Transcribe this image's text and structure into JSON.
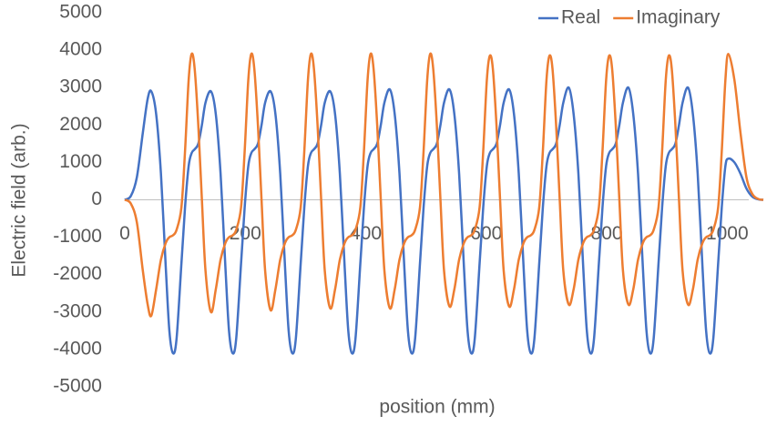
{
  "chart_data": {
    "type": "line",
    "x_label": "position (mm)",
    "y_label": "Electric field (arb.)",
    "xlim": [
      0,
      1060
    ],
    "xticks": [
      0,
      200,
      400,
      600,
      800,
      1000
    ],
    "ylim": [
      -5000,
      5000
    ],
    "yticks": [
      -5000,
      -4000,
      -3000,
      -2000,
      -1000,
      0,
      1000,
      2000,
      3000,
      4000,
      5000
    ],
    "legend": "top-right",
    "x": [
      0,
      10,
      20,
      30,
      38,
      44,
      52,
      60,
      68,
      74,
      80,
      86,
      94,
      100,
      106,
      111,
      116,
      122,
      128,
      134,
      143,
      151,
      159,
      167,
      173,
      179,
      185,
      193,
      199,
      205,
      210,
      215,
      221,
      227,
      233,
      242,
      250,
      258,
      266,
      272,
      278,
      284,
      292,
      298,
      304,
      309,
      314,
      320,
      326,
      332,
      341,
      349,
      357,
      365,
      371,
      377,
      383,
      391,
      397,
      403,
      408,
      413,
      419,
      425,
      431,
      440,
      448,
      456,
      464,
      470,
      476,
      482,
      490,
      496,
      502,
      507,
      512,
      518,
      524,
      530,
      539,
      547,
      555,
      563,
      569,
      575,
      581,
      589,
      595,
      601,
      606,
      611,
      617,
      623,
      629,
      638,
      646,
      654,
      662,
      668,
      674,
      680,
      688,
      694,
      700,
      705,
      710,
      716,
      722,
      728,
      737,
      745,
      753,
      761,
      767,
      773,
      779,
      787,
      793,
      799,
      804,
      809,
      815,
      821,
      827,
      836,
      844,
      852,
      860,
      866,
      872,
      878,
      886,
      892,
      898,
      903,
      908,
      914,
      920,
      926,
      935,
      943,
      951,
      959,
      965,
      971,
      977,
      985,
      991,
      997,
      1002,
      1012,
      1022,
      1032,
      1042,
      1052,
      1060
    ],
    "series": [
      {
        "name": "Real",
        "color": "#4472c4",
        "values": [
          0,
          100,
          600,
          1800,
          2700,
          2900,
          2300,
          700,
          -1800,
          -3500,
          -4100,
          -3700,
          -1700,
          -200,
          900,
          1250,
          1350,
          1500,
          2000,
          2600,
          2900,
          2300,
          700,
          -1800,
          -3500,
          -4100,
          -3700,
          -1700,
          -200,
          900,
          1250,
          1350,
          1500,
          2000,
          2600,
          2900,
          2300,
          700,
          -1800,
          -3500,
          -4100,
          -3700,
          -1700,
          -200,
          900,
          1250,
          1350,
          1500,
          2000,
          2600,
          2900,
          2300,
          700,
          -1800,
          -3500,
          -4100,
          -3700,
          -1700,
          -200,
          900,
          1250,
          1350,
          1500,
          2000,
          2600,
          2950,
          2300,
          700,
          -1800,
          -3500,
          -4100,
          -3700,
          -1700,
          -200,
          900,
          1250,
          1350,
          1500,
          2000,
          2600,
          2950,
          2300,
          700,
          -1800,
          -3500,
          -4100,
          -3700,
          -1700,
          -200,
          900,
          1250,
          1350,
          1500,
          2000,
          2600,
          2950,
          2300,
          700,
          -1800,
          -3500,
          -4100,
          -3700,
          -1700,
          -200,
          900,
          1250,
          1350,
          1500,
          2000,
          2600,
          3000,
          2300,
          700,
          -1800,
          -3500,
          -4100,
          -3700,
          -1700,
          -200,
          900,
          1250,
          1350,
          1500,
          2000,
          2600,
          3000,
          2300,
          700,
          -1800,
          -3500,
          -4100,
          -3700,
          -1700,
          -200,
          900,
          1250,
          1350,
          1500,
          2000,
          2600,
          3000,
          2300,
          700,
          -1800,
          -3500,
          -4100,
          -3700,
          -1700,
          -200,
          900,
          1100,
          1000,
          700,
          300,
          80,
          10,
          0
        ]
      },
      {
        "name": "Imaginary",
        "color": "#ed7d31",
        "values": [
          0,
          -100,
          -600,
          -1900,
          -2800,
          -3100,
          -2400,
          -1600,
          -1150,
          -1000,
          -950,
          -800,
          -200,
          1300,
          3200,
          3900,
          3500,
          2000,
          0,
          -1900,
          -3000,
          -2400,
          -1600,
          -1150,
          -1000,
          -950,
          -800,
          -200,
          1300,
          3200,
          3900,
          3500,
          2000,
          0,
          -1900,
          -2950,
          -2400,
          -1600,
          -1150,
          -1000,
          -950,
          -800,
          -200,
          1300,
          3200,
          3900,
          3500,
          2000,
          0,
          -1900,
          -2900,
          -2400,
          -1600,
          -1150,
          -1000,
          -950,
          -800,
          -200,
          1300,
          3200,
          3900,
          3500,
          2000,
          0,
          -1900,
          -2900,
          -2400,
          -1600,
          -1150,
          -1000,
          -950,
          -800,
          -200,
          1300,
          3200,
          3900,
          3500,
          2000,
          0,
          -1900,
          -2850,
          -2400,
          -1600,
          -1150,
          -1000,
          -950,
          -800,
          -200,
          1300,
          3200,
          3850,
          3500,
          2000,
          0,
          -1900,
          -2850,
          -2400,
          -1600,
          -1150,
          -1000,
          -950,
          -800,
          -200,
          1300,
          3200,
          3850,
          3500,
          2000,
          0,
          -1900,
          -2800,
          -2400,
          -1600,
          -1150,
          -1000,
          -950,
          -800,
          -200,
          1300,
          3200,
          3850,
          3500,
          2000,
          0,
          -1900,
          -2800,
          -2400,
          -1600,
          -1150,
          -1000,
          -950,
          -800,
          -200,
          1300,
          3200,
          3850,
          3500,
          2000,
          0,
          -1900,
          -2800,
          -2400,
          -1600,
          -1150,
          -1000,
          -950,
          -800,
          -200,
          1300,
          3200,
          3900,
          3200,
          1800,
          600,
          150,
          20,
          0
        ]
      }
    ]
  }
}
